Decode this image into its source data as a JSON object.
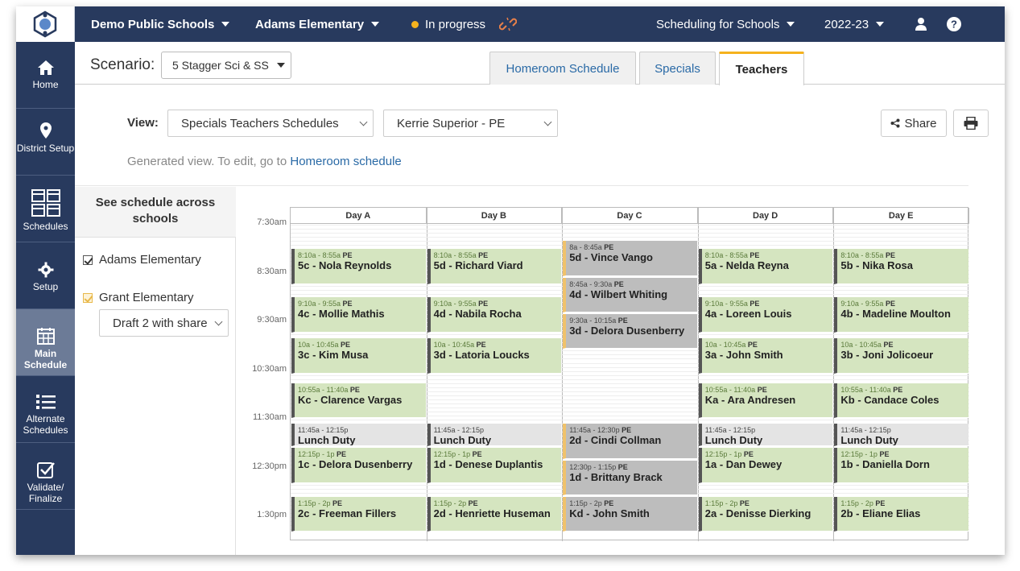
{
  "topbar": {
    "district": "Demo Public Schools",
    "school": "Adams Elementary",
    "status": "In progress",
    "product": "Scheduling for Schools",
    "year": "2022-23"
  },
  "sidebar": {
    "items": [
      {
        "label": "Home",
        "icon": "home-icon"
      },
      {
        "label": "District Setup",
        "icon": "map-pin-icon"
      },
      {
        "label": "Schedules",
        "icon": "calendar-grid-icon"
      },
      {
        "label": "Setup",
        "icon": "gear-icon"
      },
      {
        "label": "Main Schedule",
        "icon": "calendar-icon"
      },
      {
        "label": "Alternate Schedules",
        "icon": "list-icon"
      },
      {
        "label": "Validate/ Finalize",
        "icon": "check-box-icon"
      }
    ]
  },
  "scenario": {
    "label": "Scenario:",
    "value": "5 Stagger Sci & SS"
  },
  "tabs": [
    {
      "label": "Homeroom Schedule"
    },
    {
      "label": "Specials"
    },
    {
      "label": "Teachers"
    }
  ],
  "view": {
    "label": "View:",
    "view_select": "Specials Teachers Schedules",
    "teacher_select": "Kerrie Superior - PE",
    "share": "Share",
    "generated_text": "Generated view. To edit, go to",
    "generated_link": "Homeroom schedule"
  },
  "left_panel": {
    "heading": "See schedule across schools",
    "schools": [
      {
        "name": "Adams Elementary"
      },
      {
        "name": "Grant Elementary"
      }
    ],
    "draft_select": "Draft 2 with share"
  },
  "calendar": {
    "days": [
      "Day A",
      "Day B",
      "Day C",
      "Day D",
      "Day E"
    ],
    "times": [
      "7:30am",
      "8:30am",
      "9:30am",
      "10:30am",
      "11:30am",
      "12:30pm",
      "1:30pm"
    ],
    "events": [
      {
        "day": 0,
        "start": 8.167,
        "end": 8.917,
        "time": "8:10a - 8:55a",
        "tag": "PE",
        "name": "5c - Nola Reynolds",
        "kind": "green"
      },
      {
        "day": 0,
        "start": 9.15,
        "end": 9.917,
        "time": "9:10a - 9:55a",
        "tag": "PE",
        "name": "4c - Mollie Mathis",
        "kind": "green"
      },
      {
        "day": 0,
        "start": 10.0,
        "end": 10.75,
        "time": "10a - 10:45a",
        "tag": "PE",
        "name": "3c - Kim Musa",
        "kind": "green"
      },
      {
        "day": 0,
        "start": 10.917,
        "end": 11.667,
        "time": "10:55a - 11:40a",
        "tag": "PE",
        "name": "Kc - Clarence Vargas",
        "kind": "green"
      },
      {
        "day": 0,
        "start": 11.75,
        "end": 12.25,
        "time": "11:45a - 12:15p",
        "tag": "",
        "name": "Lunch Duty",
        "kind": "lunch"
      },
      {
        "day": 0,
        "start": 12.25,
        "end": 13.0,
        "time": "12:15p - 1p",
        "tag": "PE",
        "name": "1c - Delora Dusenberry",
        "kind": "green"
      },
      {
        "day": 0,
        "start": 13.25,
        "end": 14.0,
        "time": "1:15p - 2p",
        "tag": "PE",
        "name": "2c - Freeman Fillers",
        "kind": "green"
      },
      {
        "day": 1,
        "start": 8.167,
        "end": 8.917,
        "time": "8:10a - 8:55a",
        "tag": "PE",
        "name": "5d - Richard Viard",
        "kind": "green"
      },
      {
        "day": 1,
        "start": 9.15,
        "end": 9.917,
        "time": "9:10a - 9:55a",
        "tag": "PE",
        "name": "4d - Nabila Rocha",
        "kind": "green"
      },
      {
        "day": 1,
        "start": 10.0,
        "end": 10.75,
        "time": "10a - 10:45a",
        "tag": "PE",
        "name": "3d - Latoria Loucks",
        "kind": "green"
      },
      {
        "day": 1,
        "start": 11.75,
        "end": 12.25,
        "time": "11:45a - 12:15p",
        "tag": "",
        "name": "Lunch Duty",
        "kind": "lunch"
      },
      {
        "day": 1,
        "start": 12.25,
        "end": 13.0,
        "time": "12:15p - 1p",
        "tag": "PE",
        "name": "1d - Denese Duplantis",
        "kind": "green"
      },
      {
        "day": 1,
        "start": 13.25,
        "end": 14.0,
        "time": "1:15p - 2p",
        "tag": "PE",
        "name": "2d - Henriette Huseman",
        "kind": "green"
      },
      {
        "day": 2,
        "start": 8.0,
        "end": 8.75,
        "time": "8a - 8:45a",
        "tag": "PE",
        "name": "5d - Vince Vango",
        "kind": "gray"
      },
      {
        "day": 2,
        "start": 8.75,
        "end": 9.5,
        "time": "8:45a - 9:30a",
        "tag": "PE",
        "name": "4d - Wilbert Whiting",
        "kind": "gray"
      },
      {
        "day": 2,
        "start": 9.5,
        "end": 10.25,
        "time": "9:30a - 10:15a",
        "tag": "PE",
        "name": "3d - Delora Dusenberry",
        "kind": "gray"
      },
      {
        "day": 2,
        "start": 11.75,
        "end": 12.5,
        "time": "11:45a - 12:30p",
        "tag": "PE",
        "name": "2d - Cindi Collman",
        "kind": "gray"
      },
      {
        "day": 2,
        "start": 12.5,
        "end": 13.25,
        "time": "12:30p - 1:15p",
        "tag": "PE",
        "name": "1d - Brittany Brack",
        "kind": "gray"
      },
      {
        "day": 2,
        "start": 13.25,
        "end": 14.0,
        "time": "1:15p - 2p",
        "tag": "PE",
        "name": "Kd - John Smith",
        "kind": "gray"
      },
      {
        "day": 3,
        "start": 8.167,
        "end": 8.917,
        "time": "8:10a - 8:55a",
        "tag": "PE",
        "name": "5a - Nelda Reyna",
        "kind": "green"
      },
      {
        "day": 3,
        "start": 9.15,
        "end": 9.917,
        "time": "9:10a - 9:55a",
        "tag": "PE",
        "name": "4a - Loreen Louis",
        "kind": "green"
      },
      {
        "day": 3,
        "start": 10.0,
        "end": 10.75,
        "time": "10a - 10:45a",
        "tag": "PE",
        "name": "3a - John Smith",
        "kind": "green"
      },
      {
        "day": 3,
        "start": 10.917,
        "end": 11.667,
        "time": "10:55a - 11:40a",
        "tag": "PE",
        "name": "Ka - Ara Andresen",
        "kind": "green"
      },
      {
        "day": 3,
        "start": 11.75,
        "end": 12.25,
        "time": "11:45a - 12:15p",
        "tag": "",
        "name": "Lunch Duty",
        "kind": "lunch"
      },
      {
        "day": 3,
        "start": 12.25,
        "end": 13.0,
        "time": "12:15p - 1p",
        "tag": "PE",
        "name": "1a - Dan Dewey",
        "kind": "green"
      },
      {
        "day": 3,
        "start": 13.25,
        "end": 14.0,
        "time": "1:15p - 2p",
        "tag": "PE",
        "name": "2a - Denisse Dierking",
        "kind": "green"
      },
      {
        "day": 4,
        "start": 8.167,
        "end": 8.917,
        "time": "8:10a - 8:55a",
        "tag": "PE",
        "name": "5b - Nika Rosa",
        "kind": "green"
      },
      {
        "day": 4,
        "start": 9.15,
        "end": 9.917,
        "time": "9:10a - 9:55a",
        "tag": "PE",
        "name": "4b - Madeline Moulton",
        "kind": "green"
      },
      {
        "day": 4,
        "start": 10.0,
        "end": 10.75,
        "time": "10a - 10:45a",
        "tag": "PE",
        "name": "3b - Joni Jolicoeur",
        "kind": "green"
      },
      {
        "day": 4,
        "start": 10.917,
        "end": 11.667,
        "time": "10:55a - 11:40a",
        "tag": "PE",
        "name": "Kb - Candace Coles",
        "kind": "green"
      },
      {
        "day": 4,
        "start": 11.75,
        "end": 12.25,
        "time": "11:45a - 12:15p",
        "tag": "",
        "name": "Lunch Duty",
        "kind": "lunch"
      },
      {
        "day": 4,
        "start": 12.25,
        "end": 13.0,
        "time": "12:15p - 1p",
        "tag": "PE",
        "name": "1b - Daniella Dorn",
        "kind": "green"
      },
      {
        "day": 4,
        "start": 13.25,
        "end": 14.0,
        "time": "1:15p - 2p",
        "tag": "PE",
        "name": "2b - Eliane Elias",
        "kind": "green"
      }
    ]
  }
}
